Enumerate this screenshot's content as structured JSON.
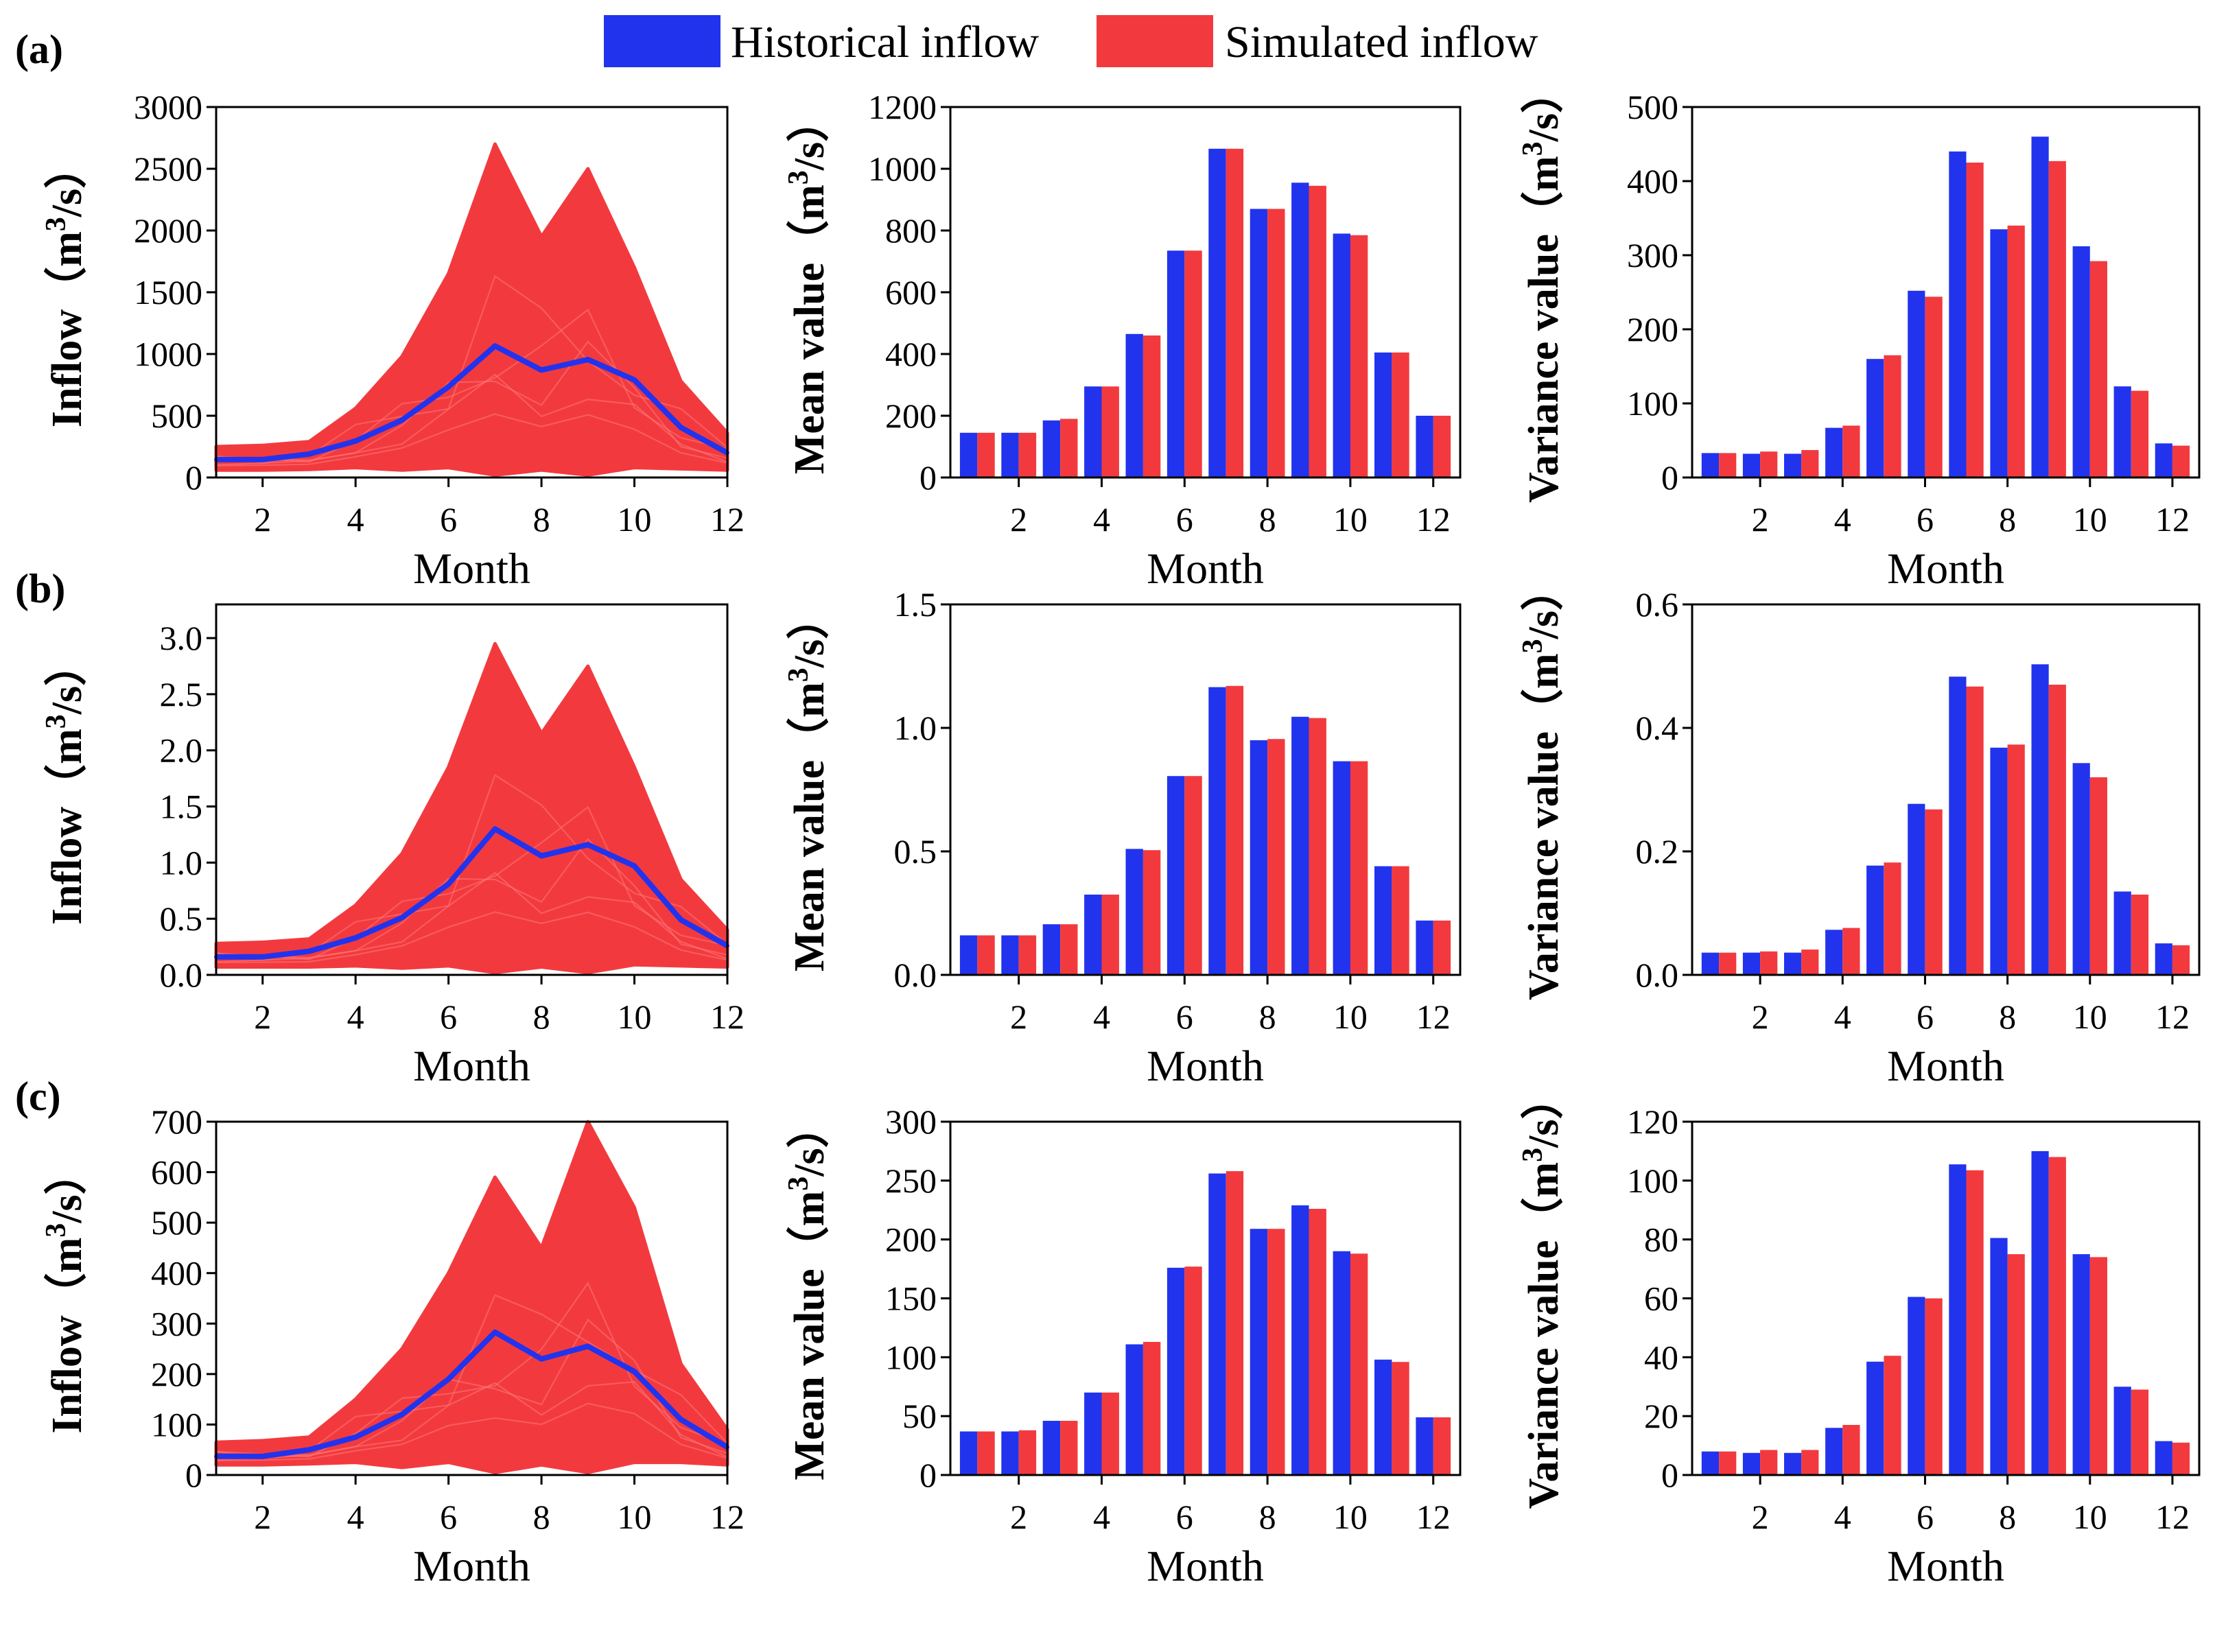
{
  "legend": {
    "historical": {
      "label": "Historical inflow",
      "color": "#2233ee"
    },
    "simulated": {
      "label": "Simulated inflow",
      "color": "#f23a3e"
    }
  },
  "rows": [
    {
      "panel_label": "(a)",
      "ylabel_prefixes": {
        "line": "Inflow",
        "mean": "Mean value",
        "variance": "Variance value"
      }
    },
    {
      "panel_label": "(b)",
      "ylabel_prefixes": {
        "line": "Inflow",
        "mean": "Mean value",
        "variance": "Variance value"
      }
    },
    {
      "panel_label": "(c)",
      "ylabel_prefixes": {
        "line": "Inflow",
        "mean": "Mean value",
        "variance": "Variance value"
      }
    }
  ],
  "unit": {
    "open": "（m",
    "sup": "3",
    "close": "/s）"
  },
  "chart_data": [
    {
      "id": "a-inflow",
      "type": "line",
      "title": "",
      "xlabel": "Month",
      "ylabel": "Inflow（m3/s）",
      "x": [
        1,
        2,
        3,
        4,
        5,
        6,
        7,
        8,
        9,
        10,
        11,
        12
      ],
      "xlim": [
        1,
        12
      ],
      "xticks": [
        2,
        4,
        6,
        8,
        10,
        12
      ],
      "ylim": [
        0,
        3000
      ],
      "yticks": [
        0,
        500,
        1000,
        1500,
        2000,
        2500,
        3000
      ],
      "ytick_labels": [
        "0",
        "500",
        "1000",
        "1500",
        "2000",
        "2500",
        "3000"
      ],
      "series": [
        {
          "name": "Simulated inflow (ensemble upper envelope)",
          "values": [
            250,
            260,
            290,
            560,
            980,
            1650,
            2700,
            1950,
            2500,
            1700,
            780,
            360
          ]
        },
        {
          "name": "Simulated inflow (ensemble lower envelope)",
          "values": [
            60,
            60,
            65,
            80,
            60,
            80,
            20,
            60,
            20,
            80,
            70,
            60
          ]
        },
        {
          "name": "Historical inflow",
          "values": [
            145,
            145,
            190,
            295,
            465,
            735,
            1065,
            870,
            955,
            790,
            405,
            200
          ]
        }
      ]
    },
    {
      "id": "a-mean",
      "type": "bar",
      "title": "",
      "xlabel": "Month",
      "ylabel": "Mean value（m3/s）",
      "categories": [
        1,
        2,
        3,
        4,
        5,
        6,
        7,
        8,
        9,
        10,
        11,
        12
      ],
      "xticks": [
        2,
        4,
        6,
        8,
        10,
        12
      ],
      "ylim": [
        0,
        1200
      ],
      "yticks": [
        0,
        200,
        400,
        600,
        800,
        1000,
        1200
      ],
      "ytick_labels": [
        "0",
        "200",
        "400",
        "600",
        "800",
        "1000",
        "1200"
      ],
      "series": [
        {
          "name": "Historical inflow",
          "values": [
            145,
            145,
            185,
            295,
            465,
            735,
            1065,
            870,
            955,
            790,
            405,
            200
          ]
        },
        {
          "name": "Simulated inflow",
          "values": [
            145,
            145,
            190,
            295,
            460,
            735,
            1065,
            870,
            945,
            785,
            405,
            200
          ]
        }
      ]
    },
    {
      "id": "a-var",
      "type": "bar",
      "title": "",
      "xlabel": "Month",
      "ylabel": "Variance value（m3/s）",
      "categories": [
        1,
        2,
        3,
        4,
        5,
        6,
        7,
        8,
        9,
        10,
        11,
        12
      ],
      "xticks": [
        2,
        4,
        6,
        8,
        10,
        12
      ],
      "ylim": [
        0,
        500
      ],
      "yticks": [
        0,
        100,
        200,
        300,
        400,
        500
      ],
      "ytick_labels": [
        "0",
        "100",
        "200",
        "300",
        "400",
        "500"
      ],
      "series": [
        {
          "name": "Historical inflow",
          "values": [
            33,
            32,
            32,
            67,
            160,
            252,
            440,
            335,
            460,
            312,
            123,
            46
          ]
        },
        {
          "name": "Simulated inflow",
          "values": [
            33,
            35,
            37,
            70,
            165,
            244,
            425,
            340,
            427,
            292,
            117,
            43
          ]
        }
      ]
    },
    {
      "id": "b-inflow",
      "type": "line",
      "title": "",
      "xlabel": "Month",
      "ylabel": "Inflow（m3/s）",
      "x": [
        1,
        2,
        3,
        4,
        5,
        6,
        7,
        8,
        9,
        10,
        11,
        12
      ],
      "xlim": [
        1,
        12
      ],
      "xticks": [
        2,
        4,
        6,
        8,
        10,
        12
      ],
      "ylim": [
        0,
        3.3
      ],
      "yticks": [
        0,
        0.5,
        1.0,
        1.5,
        2.0,
        2.5,
        3.0
      ],
      "ytick_labels": [
        "0.0",
        "0.5",
        "1.0",
        "1.5",
        "2.0",
        "2.5",
        "3.0"
      ],
      "series": [
        {
          "name": "Simulated inflow (ensemble upper envelope)",
          "values": [
            0.28,
            0.29,
            0.32,
            0.62,
            1.08,
            1.85,
            2.95,
            2.15,
            2.75,
            1.85,
            0.85,
            0.4
          ]
        },
        {
          "name": "Simulated inflow (ensemble lower envelope)",
          "values": [
            0.07,
            0.07,
            0.07,
            0.08,
            0.06,
            0.08,
            0.02,
            0.07,
            0.02,
            0.09,
            0.08,
            0.07
          ]
        },
        {
          "name": "Historical inflow",
          "values": [
            0.16,
            0.16,
            0.21,
            0.33,
            0.51,
            0.81,
            1.3,
            1.06,
            1.16,
            0.97,
            0.49,
            0.26
          ]
        }
      ]
    },
    {
      "id": "b-mean",
      "type": "bar",
      "title": "",
      "xlabel": "Month",
      "ylabel": "Mean value（m3/s）",
      "categories": [
        1,
        2,
        3,
        4,
        5,
        6,
        7,
        8,
        9,
        10,
        11,
        12
      ],
      "xticks": [
        2,
        4,
        6,
        8,
        10,
        12
      ],
      "ylim": [
        0,
        1.5
      ],
      "yticks": [
        0,
        0.5,
        1.0,
        1.5
      ],
      "ytick_labels": [
        "0.0",
        "0.5",
        "1.0",
        "1.5"
      ],
      "series": [
        {
          "name": "Historical inflow",
          "values": [
            0.16,
            0.16,
            0.205,
            0.325,
            0.51,
            0.805,
            1.165,
            0.95,
            1.045,
            0.865,
            0.44,
            0.22
          ]
        },
        {
          "name": "Simulated inflow",
          "values": [
            0.16,
            0.16,
            0.205,
            0.325,
            0.505,
            0.805,
            1.17,
            0.955,
            1.04,
            0.865,
            0.44,
            0.22
          ]
        }
      ]
    },
    {
      "id": "b-var",
      "type": "bar",
      "title": "",
      "xlabel": "Month",
      "ylabel": "Variance value（m3/s）",
      "categories": [
        1,
        2,
        3,
        4,
        5,
        6,
        7,
        8,
        9,
        10,
        11,
        12
      ],
      "xticks": [
        2,
        4,
        6,
        8,
        10,
        12
      ],
      "ylim": [
        0,
        0.6
      ],
      "yticks": [
        0,
        0.2,
        0.4,
        0.6
      ],
      "ytick_labels": [
        "0.0",
        "0.2",
        "0.4",
        "0.6"
      ],
      "series": [
        {
          "name": "Historical inflow",
          "values": [
            0.036,
            0.036,
            0.036,
            0.073,
            0.177,
            0.277,
            0.483,
            0.368,
            0.503,
            0.343,
            0.135,
            0.051
          ]
        },
        {
          "name": "Simulated inflow",
          "values": [
            0.036,
            0.038,
            0.041,
            0.076,
            0.182,
            0.268,
            0.467,
            0.373,
            0.47,
            0.32,
            0.13,
            0.048
          ]
        }
      ]
    },
    {
      "id": "c-inflow",
      "type": "line",
      "title": "",
      "xlabel": "Month",
      "ylabel": "Inflow（m3/s）",
      "x": [
        1,
        2,
        3,
        4,
        5,
        6,
        7,
        8,
        9,
        10,
        11,
        12
      ],
      "xlim": [
        1,
        12
      ],
      "xticks": [
        2,
        4,
        6,
        8,
        10,
        12
      ],
      "ylim": [
        0,
        700
      ],
      "yticks": [
        0,
        100,
        200,
        300,
        400,
        500,
        600,
        700
      ],
      "ytick_labels": [
        "0",
        "100",
        "200",
        "300",
        "400",
        "500",
        "600",
        "700"
      ],
      "series": [
        {
          "name": "Simulated inflow (ensemble upper envelope)",
          "values": [
            65,
            68,
            75,
            150,
            250,
            400,
            590,
            450,
            700,
            530,
            220,
            90
          ]
        },
        {
          "name": "Simulated inflow (ensemble lower envelope)",
          "values": [
            20,
            20,
            22,
            25,
            15,
            25,
            5,
            20,
            5,
            25,
            25,
            20
          ]
        },
        {
          "name": "Historical inflow",
          "values": [
            37,
            37,
            50,
            75,
            120,
            190,
            283,
            230,
            255,
            205,
            110,
            55
          ]
        }
      ]
    },
    {
      "id": "c-mean",
      "type": "bar",
      "title": "",
      "xlabel": "Month",
      "ylabel": "Mean value（m3/s）",
      "categories": [
        1,
        2,
        3,
        4,
        5,
        6,
        7,
        8,
        9,
        10,
        11,
        12
      ],
      "xticks": [
        2,
        4,
        6,
        8,
        10,
        12
      ],
      "ylim": [
        0,
        300
      ],
      "yticks": [
        0,
        50,
        100,
        150,
        200,
        250,
        300
      ],
      "ytick_labels": [
        "0",
        "50",
        "100",
        "150",
        "200",
        "250",
        "300"
      ],
      "series": [
        {
          "name": "Historical inflow",
          "values": [
            37,
            37,
            46,
            70,
            111,
            176,
            256,
            209,
            229,
            190,
            98,
            49
          ]
        },
        {
          "name": "Simulated inflow",
          "values": [
            37,
            38,
            46,
            70,
            113,
            177,
            258,
            209,
            226,
            188,
            96,
            49
          ]
        }
      ]
    },
    {
      "id": "c-var",
      "type": "bar",
      "title": "",
      "xlabel": "Month",
      "ylabel": "Variance value（m3/s）",
      "categories": [
        1,
        2,
        3,
        4,
        5,
        6,
        7,
        8,
        9,
        10,
        11,
        12
      ],
      "xticks": [
        2,
        4,
        6,
        8,
        10,
        12
      ],
      "ylim": [
        0,
        120
      ],
      "yticks": [
        0,
        20,
        40,
        60,
        80,
        100,
        120
      ],
      "ytick_labels": [
        "0",
        "20",
        "40",
        "60",
        "80",
        "100",
        "120"
      ],
      "series": [
        {
          "name": "Historical inflow",
          "values": [
            8,
            7.5,
            7.5,
            16,
            38.5,
            60.5,
            105.5,
            80.5,
            110,
            75,
            30,
            11.5
          ]
        },
        {
          "name": "Simulated inflow",
          "values": [
            8,
            8.5,
            8.5,
            17,
            40.5,
            60,
            103.5,
            75,
            108,
            74,
            29,
            11
          ]
        }
      ]
    }
  ]
}
